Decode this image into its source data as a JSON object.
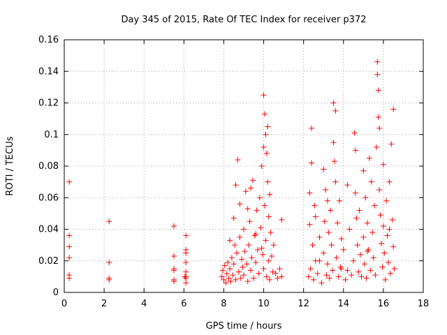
{
  "chart_data": {
    "type": "scatter",
    "title": "Day 345 of 2015, Rate Of TEC Index for receiver p372",
    "xlabel": "GPS time / hours",
    "ylabel": "ROTI / TECUs",
    "xlim": [
      0,
      18
    ],
    "ylim": [
      0,
      0.16
    ],
    "xticks": [
      0,
      2,
      4,
      6,
      8,
      10,
      12,
      14,
      16,
      18
    ],
    "xtick_labels": [
      "0",
      "2",
      "4",
      "6",
      "8",
      "10",
      "12",
      "14",
      "16",
      "18"
    ],
    "yticks": [
      0,
      0.02,
      0.04,
      0.06,
      0.08,
      0.1,
      0.12,
      0.14,
      0.16
    ],
    "ytick_labels": [
      "0",
      "0.02",
      "0.04",
      "0.06",
      "0.08",
      "0.1",
      "0.12",
      "0.14",
      "0.16"
    ],
    "grid": true,
    "marker": "+",
    "color": "#ff0000",
    "series": [
      {
        "name": "ROTI",
        "points": [
          [
            0.25,
            0.07
          ],
          [
            0.25,
            0.036
          ],
          [
            0.25,
            0.029
          ],
          [
            0.25,
            0.022
          ],
          [
            0.25,
            0.011
          ],
          [
            0.25,
            0.009
          ],
          [
            2.25,
            0.045
          ],
          [
            2.25,
            0.019
          ],
          [
            2.25,
            0.009
          ],
          [
            2.25,
            0.008
          ],
          [
            5.5,
            0.042
          ],
          [
            5.5,
            0.023
          ],
          [
            5.5,
            0.015
          ],
          [
            5.5,
            0.014
          ],
          [
            5.5,
            0.008
          ],
          [
            5.5,
            0.007
          ],
          [
            6.1,
            0.036
          ],
          [
            6.1,
            0.027
          ],
          [
            6.1,
            0.025
          ],
          [
            6.1,
            0.019
          ],
          [
            6.1,
            0.013
          ],
          [
            6.1,
            0.01
          ],
          [
            6.1,
            0.009
          ],
          [
            6.1,
            0.006
          ],
          [
            6.05,
            0.01
          ],
          [
            7.9,
            0.01
          ],
          [
            7.95,
            0.014
          ],
          [
            8.0,
            0.008
          ],
          [
            8.05,
            0.017
          ],
          [
            8.1,
            0.006
          ],
          [
            8.15,
            0.012
          ],
          [
            8.2,
            0.019
          ],
          [
            8.25,
            0.009
          ],
          [
            8.3,
            0.015
          ],
          [
            8.35,
            0.007
          ],
          [
            8.4,
            0.022
          ],
          [
            8.45,
            0.011
          ],
          [
            8.5,
            0.018
          ],
          [
            8.55,
            0.03
          ],
          [
            8.6,
            0.008
          ],
          [
            8.6,
            0.068
          ],
          [
            8.65,
            0.025
          ],
          [
            8.7,
            0.084
          ],
          [
            8.75,
            0.013
          ],
          [
            8.8,
            0.035
          ],
          [
            8.85,
            0.009
          ],
          [
            8.9,
            0.021
          ],
          [
            8.95,
            0.016
          ],
          [
            9.0,
            0.04
          ],
          [
            9.0,
            0.011
          ],
          [
            9.05,
            0.026
          ],
          [
            9.1,
            0.064
          ],
          [
            9.15,
            0.018
          ],
          [
            9.2,
            0.007
          ],
          [
            9.25,
            0.03
          ],
          [
            9.3,
            0.045
          ],
          [
            9.35,
            0.014
          ],
          [
            9.4,
            0.022
          ],
          [
            9.45,
            0.071
          ],
          [
            9.5,
            0.009
          ],
          [
            9.55,
            0.036
          ],
          [
            9.6,
            0.019
          ],
          [
            9.65,
            0.052
          ],
          [
            9.7,
            0.027
          ],
          [
            9.75,
            0.012
          ],
          [
            9.8,
            0.06
          ],
          [
            9.85,
            0.041
          ],
          [
            9.9,
            0.08
          ],
          [
            9.95,
            0.024
          ],
          [
            10.0,
            0.125
          ],
          [
            10.0,
            0.092
          ],
          [
            10.0,
            0.015
          ],
          [
            10.05,
            0.113
          ],
          [
            10.05,
            0.055
          ],
          [
            10.1,
            0.1
          ],
          [
            10.1,
            0.033
          ],
          [
            10.15,
            0.088
          ],
          [
            10.15,
            0.01
          ],
          [
            10.2,
            0.105
          ],
          [
            10.2,
            0.07
          ],
          [
            10.25,
            0.048
          ],
          [
            10.25,
            0.02
          ],
          [
            10.3,
            0.062
          ],
          [
            10.3,
            0.008
          ],
          [
            10.35,
            0.038
          ],
          [
            10.4,
            0.023
          ],
          [
            10.45,
            0.013
          ],
          [
            10.5,
            0.03
          ],
          [
            10.6,
            0.012
          ],
          [
            10.7,
            0.009
          ],
          [
            10.8,
            0.015
          ],
          [
            10.9,
            0.046
          ],
          [
            10.9,
            0.01
          ],
          [
            8.3,
            0.033
          ],
          [
            8.5,
            0.047
          ],
          [
            9.2,
            0.053
          ],
          [
            9.6,
            0.037
          ],
          [
            9.9,
            0.028
          ],
          [
            8.8,
            0.056
          ],
          [
            9.35,
            0.066
          ],
          [
            12.25,
            0.01
          ],
          [
            12.3,
            0.063
          ],
          [
            12.3,
            0.043
          ],
          [
            12.35,
            0.015
          ],
          [
            12.4,
            0.104
          ],
          [
            12.4,
            0.082
          ],
          [
            12.45,
            0.03
          ],
          [
            12.5,
            0.008
          ],
          [
            12.55,
            0.055
          ],
          [
            12.6,
            0.02
          ],
          [
            12.7,
            0.012
          ],
          [
            12.8,
            0.035
          ],
          [
            12.9,
            0.006
          ],
          [
            13.0,
            0.025
          ],
          [
            13.0,
            0.078
          ],
          [
            13.05,
            0.045
          ],
          [
            13.1,
            0.065
          ],
          [
            13.15,
            0.011
          ],
          [
            13.2,
            0.018
          ],
          [
            13.25,
            0.038
          ],
          [
            13.3,
            0.009
          ],
          [
            13.35,
            0.052
          ],
          [
            13.4,
            0.03
          ],
          [
            13.45,
            0.014
          ],
          [
            13.5,
            0.12
          ],
          [
            13.5,
            0.095
          ],
          [
            13.55,
            0.083
          ],
          [
            13.6,
            0.07
          ],
          [
            13.6,
            0.115
          ],
          [
            13.65,
            0.022
          ],
          [
            13.7,
            0.044
          ],
          [
            13.75,
            0.01
          ],
          [
            13.8,
            0.058
          ],
          [
            13.85,
            0.016
          ],
          [
            13.9,
            0.034
          ],
          [
            14.0,
            0.027
          ],
          [
            14.1,
            0.008
          ],
          [
            14.2,
            0.014
          ],
          [
            14.3,
            0.04
          ],
          [
            14.4,
            0.011
          ],
          [
            14.5,
            0.02
          ],
          [
            14.55,
            0.101
          ],
          [
            14.6,
            0.09
          ],
          [
            14.6,
            0.063
          ],
          [
            14.65,
            0.047
          ],
          [
            14.7,
            0.03
          ],
          [
            14.75,
            0.013
          ],
          [
            14.8,
            0.052
          ],
          [
            14.85,
            0.024
          ],
          [
            14.9,
            0.01
          ],
          [
            15.0,
            0.077
          ],
          [
            15.0,
            0.035
          ],
          [
            15.05,
            0.018
          ],
          [
            15.1,
            0.06
          ],
          [
            15.15,
            0.009
          ],
          [
            15.2,
            0.044
          ],
          [
            15.25,
            0.027
          ],
          [
            15.3,
            0.085
          ],
          [
            15.35,
            0.014
          ],
          [
            15.4,
            0.07
          ],
          [
            15.45,
            0.038
          ],
          [
            15.5,
            0.022
          ],
          [
            15.55,
            0.055
          ],
          [
            15.6,
            0.011
          ],
          [
            15.65,
            0.092
          ],
          [
            15.7,
            0.146
          ],
          [
            15.7,
            0.138
          ],
          [
            15.75,
            0.128
          ],
          [
            15.75,
            0.111
          ],
          [
            15.8,
            0.104
          ],
          [
            15.8,
            0.065
          ],
          [
            15.85,
            0.049
          ],
          [
            15.9,
            0.031
          ],
          [
            15.95,
            0.016
          ],
          [
            16.0,
            0.081
          ],
          [
            16.0,
            0.042
          ],
          [
            16.05,
            0.025
          ],
          [
            16.1,
            0.008
          ],
          [
            16.15,
            0.058
          ],
          [
            16.2,
            0.036
          ],
          [
            16.25,
            0.019
          ],
          [
            16.3,
            0.07
          ],
          [
            16.35,
            0.012
          ],
          [
            16.4,
            0.094
          ],
          [
            16.45,
            0.046
          ],
          [
            16.5,
            0.116
          ],
          [
            16.5,
            0.029
          ],
          [
            16.55,
            0.015
          ],
          [
            12.6,
            0.048
          ],
          [
            13.2,
            0.058
          ],
          [
            14.2,
            0.068
          ],
          [
            15.2,
            0.026
          ],
          [
            16.3,
            0.04
          ],
          [
            12.8,
            0.02
          ],
          [
            13.9,
            0.015
          ]
        ]
      }
    ]
  }
}
